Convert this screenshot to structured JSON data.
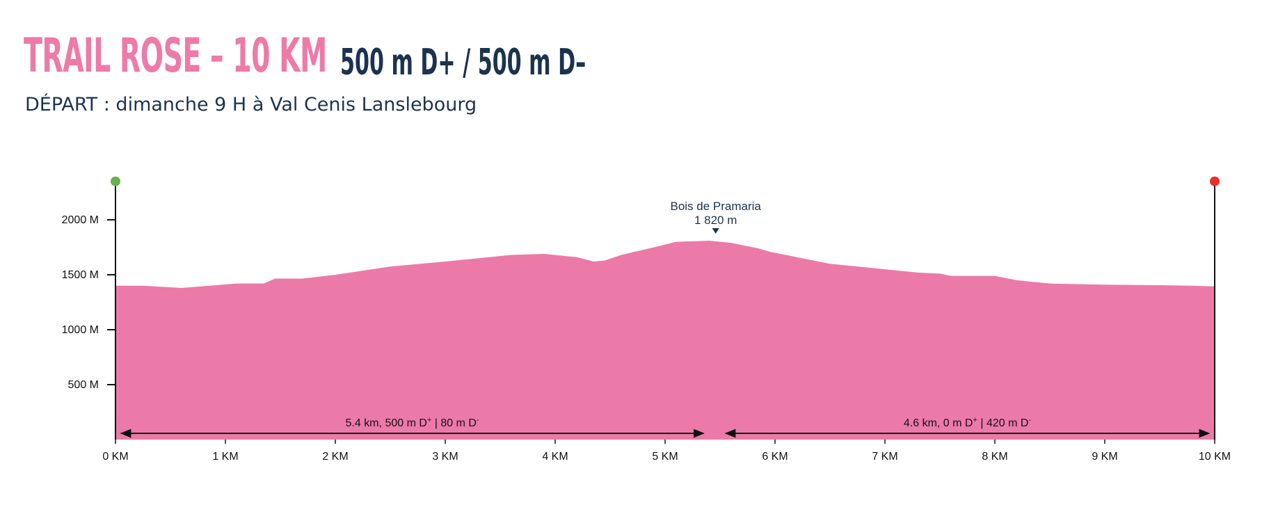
{
  "header": {
    "title": "TRAIL ROSE – 10 KM",
    "elevation_summary": "500 m D+ / 500 m D–",
    "subtitle": "DÉPART : dimanche 9 H à Val Cenis Lanslebourg"
  },
  "colors": {
    "accent": "#ee7aa8",
    "fill": "#ec7aa8",
    "text": "#1c3350",
    "start_marker": "#6ab04c",
    "end_marker": "#e8312f"
  },
  "chart_data": {
    "type": "area",
    "xlabel": "",
    "ylabel": "",
    "xlim": [
      0,
      10
    ],
    "ylim": [
      0,
      2350
    ],
    "grid": false,
    "x_ticks": [
      0,
      1,
      2,
      3,
      4,
      5,
      6,
      7,
      8,
      9,
      10
    ],
    "x_tick_labels": [
      "0 KM",
      "1 KM",
      "2 KM",
      "3 KM",
      "4 KM",
      "5 KM",
      "6 KM",
      "7 KM",
      "8 KM",
      "9 KM",
      "10 KM"
    ],
    "y_ticks": [
      500,
      1000,
      1500,
      2000
    ],
    "y_tick_labels": [
      "500 M",
      "1000 M",
      "1500 M",
      "2000 M"
    ],
    "series": [
      {
        "x": [
          0,
          0.25,
          0.6,
          1.1,
          1.35,
          1.45,
          1.7,
          2.0,
          2.5,
          3.0,
          3.3,
          3.6,
          3.9,
          4.2,
          4.35,
          4.45,
          4.6,
          4.9,
          5.1,
          5.4,
          5.6,
          5.85,
          5.95,
          6.1,
          6.5,
          7.0,
          7.3,
          7.5,
          7.6,
          8.0,
          8.2,
          8.5,
          9.0,
          9.5,
          9.8,
          9.95,
          10.0
        ],
        "y": [
          1400,
          1400,
          1380,
          1420,
          1420,
          1465,
          1465,
          1500,
          1575,
          1620,
          1650,
          1680,
          1690,
          1660,
          1620,
          1630,
          1680,
          1750,
          1800,
          1810,
          1790,
          1740,
          1710,
          1680,
          1600,
          1550,
          1520,
          1510,
          1490,
          1490,
          1450,
          1420,
          1410,
          1405,
          1400,
          1395,
          1395
        ]
      }
    ],
    "annotations": [
      {
        "x": 5.46,
        "y": 1820,
        "name": "Bois de Pramaria",
        "value": "1 820 m"
      }
    ],
    "segments": [
      {
        "from": 0,
        "to": 5.4,
        "label_main": "5.4 km, 500 m D",
        "label_up": "+",
        "label_mid": " | 80 m D",
        "label_down": "-"
      },
      {
        "from": 5.5,
        "to": 10,
        "label_main": "4.6 km, 0 m D",
        "label_up": "+",
        "label_mid": " | 420 m D",
        "label_down": "-"
      }
    ]
  }
}
